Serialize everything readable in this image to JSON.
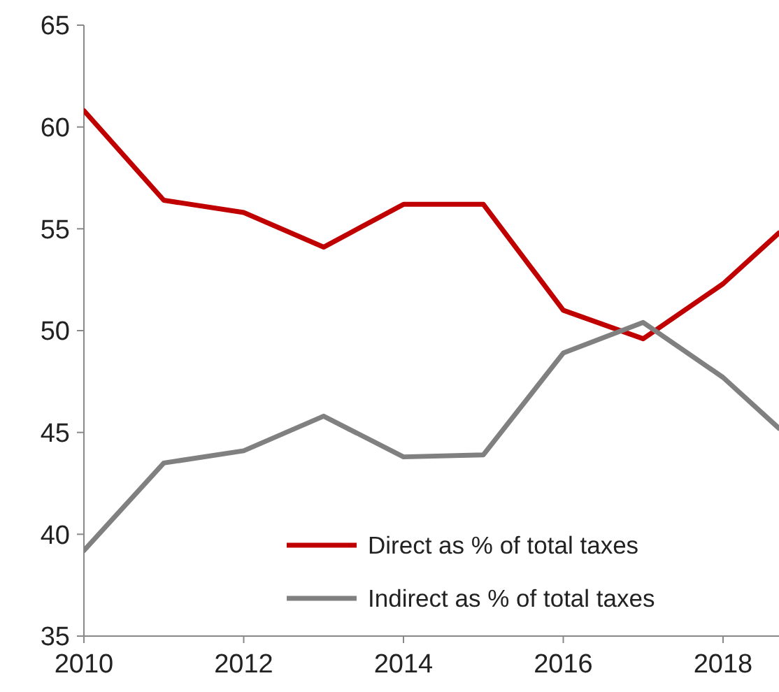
{
  "chart_data": {
    "type": "line",
    "x": [
      2010,
      2011,
      2012,
      2013,
      2014,
      2015,
      2016,
      2017,
      2018,
      2018.7
    ],
    "xlim": [
      2010,
      2018.7
    ],
    "xticks": [
      2010,
      2012,
      2014,
      2016,
      2018
    ],
    "ylim": [
      35,
      65
    ],
    "yticks": [
      35,
      40,
      45,
      50,
      55,
      60,
      65
    ],
    "grid": false,
    "legend": "bottom right",
    "line_style": "solid",
    "series": [
      {
        "name": "Direct as % of total taxes",
        "color": "#c00000",
        "values": [
          60.8,
          56.4,
          55.8,
          54.1,
          56.2,
          56.2,
          51.0,
          49.6,
          52.3,
          54.8
        ]
      },
      {
        "name": "Indirect as % of total taxes",
        "color": "#808080",
        "values": [
          39.2,
          43.5,
          44.1,
          45.8,
          43.8,
          43.9,
          48.9,
          50.4,
          47.7,
          45.2
        ]
      }
    ]
  }
}
